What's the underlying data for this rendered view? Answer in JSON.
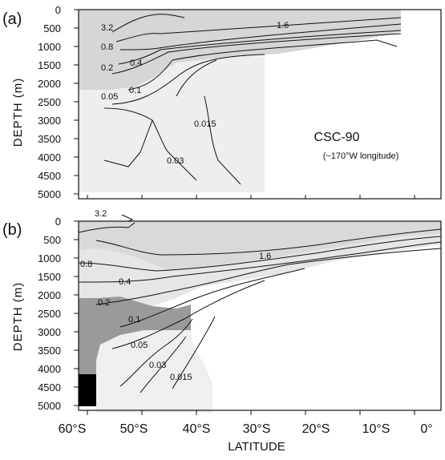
{
  "panels": [
    {
      "label": "(a)",
      "y_axis_label": "DEPTH (m)",
      "depth_ticks": [
        "0",
        "500",
        "1000",
        "1500",
        "2000",
        "2500",
        "3000",
        "3500",
        "4000",
        "4500",
        "5000"
      ],
      "experiment": "CSC-90",
      "experiment_note": "(~170°W longitude)",
      "contour_labels": [
        "3.2",
        "1.6",
        "0.8",
        "0.4",
        "0.2",
        "0.1",
        "0.05",
        "0.015",
        "0.03"
      ]
    },
    {
      "label": "(b)",
      "y_axis_label": "DEPTH (m)",
      "depth_ticks": [
        "0",
        "500",
        "1000",
        "1500",
        "2000",
        "2500",
        "3000",
        "3500",
        "4000",
        "4500",
        "5000"
      ],
      "contour_labels": [
        "3.2",
        "1.6",
        "0.8",
        "0.4",
        "0.2",
        "0.1",
        "0.05",
        "0.03",
        "0.015"
      ]
    }
  ],
  "x_axis": {
    "ticks": [
      "60°S",
      "50°S",
      "40°S",
      "30°S",
      "20°S",
      "10°S",
      "0°"
    ],
    "label": "LATITUDE"
  },
  "colors": {
    "ink": "#111111",
    "shade_light": "#d6d6d6",
    "shade_medium": "#b9b9b9",
    "shade_dark": "#8f8f8f",
    "stipple": "#e6e6e6",
    "land": "#000000"
  }
}
